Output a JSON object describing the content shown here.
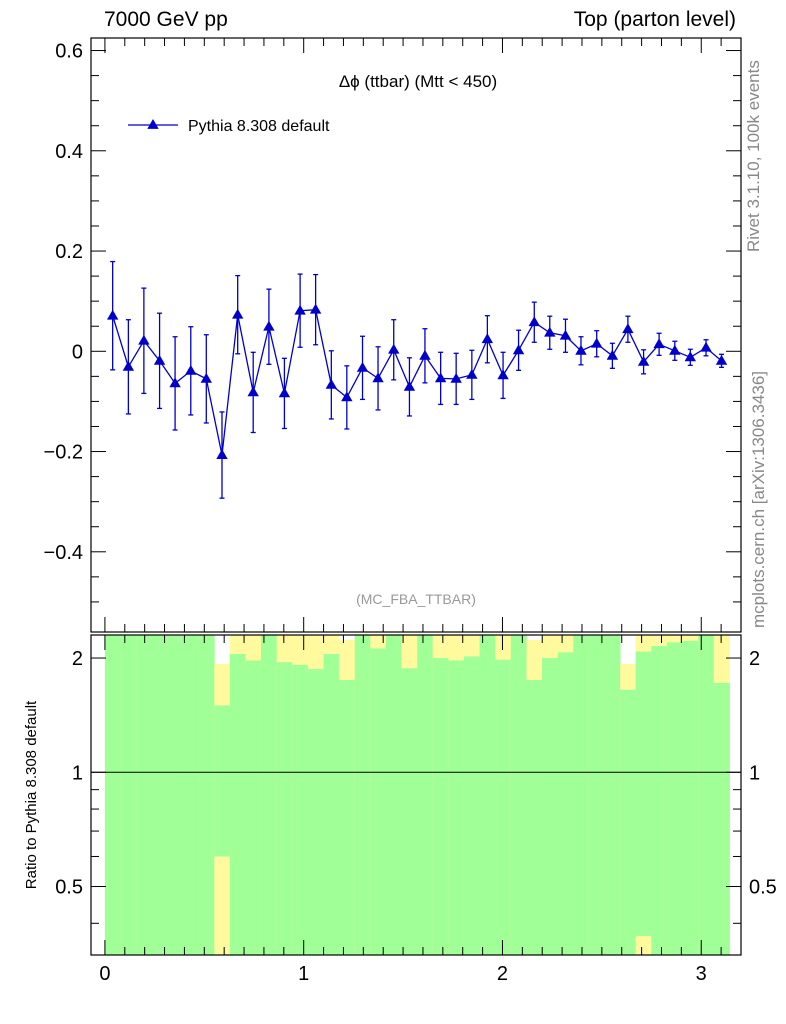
{
  "header": {
    "left": "7000 GeV pp",
    "right": "Top (parton level)"
  },
  "side_labels": {
    "rivet": "Rivet 3.1.10,  100k events",
    "mcplots": "mcplots.cern.ch [arXiv:1306.3436]"
  },
  "colors": {
    "series": "#0000cc",
    "band_inner": "#a0ff97",
    "band_outer": "#fffa9e",
    "axis": "#000000",
    "watermark": "#999999"
  },
  "chart_data": [
    {
      "type": "line",
      "title": "Δϕ (ttbar) (Mtt < 450)",
      "watermark": "(MC_FBA_TTBAR)",
      "xlim": [
        -0.07,
        3.2
      ],
      "ylim": [
        -0.56,
        0.625
      ],
      "y_ticks": [
        -0.4,
        -0.2,
        0,
        0.2,
        0.4,
        0.6
      ],
      "y_tick_labels": [
        "−0.4",
        "−0.2",
        "0",
        "0.2",
        "0.4",
        "0.6"
      ],
      "legend_position": "top-left",
      "series": [
        {
          "name": "Pythia 8.308 default",
          "marker": "triangle-up",
          "x": [
            0.039,
            0.118,
            0.196,
            0.275,
            0.353,
            0.432,
            0.51,
            0.589,
            0.668,
            0.746,
            0.825,
            0.903,
            0.982,
            1.06,
            1.139,
            1.217,
            1.296,
            1.374,
            1.453,
            1.532,
            1.61,
            1.689,
            1.767,
            1.846,
            1.924,
            2.003,
            2.081,
            2.16,
            2.238,
            2.317,
            2.395,
            2.474,
            2.553,
            2.631,
            2.71,
            2.788,
            2.867,
            2.945,
            3.024,
            3.102
          ],
          "y": [
            0.071,
            -0.031,
            0.021,
            -0.019,
            -0.064,
            -0.039,
            -0.055,
            -0.207,
            0.073,
            -0.082,
            0.049,
            -0.084,
            0.081,
            0.083,
            -0.067,
            -0.092,
            -0.033,
            -0.054,
            0.003,
            -0.071,
            -0.009,
            -0.054,
            -0.055,
            -0.047,
            0.024,
            -0.048,
            0.002,
            0.058,
            0.037,
            0.031,
            0.001,
            0.015,
            -0.009,
            0.044,
            -0.021,
            0.014,
            0.001,
            -0.012,
            0.007,
            -0.019
          ],
          "yerr": [
            0.108,
            0.094,
            0.105,
            0.095,
            0.093,
            0.088,
            0.088,
            0.086,
            0.078,
            0.08,
            0.075,
            0.07,
            0.073,
            0.07,
            0.068,
            0.063,
            0.063,
            0.063,
            0.06,
            0.058,
            0.054,
            0.052,
            0.051,
            0.049,
            0.047,
            0.046,
            0.04,
            0.04,
            0.033,
            0.033,
            0.028,
            0.026,
            0.025,
            0.026,
            0.024,
            0.022,
            0.019,
            0.016,
            0.016,
            0.013
          ]
        }
      ]
    },
    {
      "type": "area",
      "ylabel": "Ratio to Pythia 8.308 default",
      "xlim": [
        -0.07,
        3.2
      ],
      "ylim": [
        0.33,
        2.3
      ],
      "y_scale": "log",
      "reference_line": 1,
      "x_ticks": [
        0,
        1,
        2,
        3
      ],
      "x_tick_labels": [
        "0",
        "1",
        "2",
        "3"
      ],
      "y_ticks": [
        0.5,
        1,
        2
      ],
      "y_tick_labels": [
        "0.5",
        "1",
        "2"
      ],
      "bin_edges": [
        0.0,
        0.079,
        0.157,
        0.236,
        0.314,
        0.393,
        0.471,
        0.55,
        0.628,
        0.707,
        0.785,
        0.864,
        0.942,
        1.021,
        1.1,
        1.178,
        1.257,
        1.335,
        1.414,
        1.492,
        1.571,
        1.649,
        1.728,
        1.806,
        1.885,
        1.963,
        2.042,
        2.121,
        2.199,
        2.278,
        2.356,
        2.435,
        2.513,
        2.592,
        2.67,
        2.749,
        2.827,
        2.906,
        2.985,
        3.063,
        3.142
      ],
      "band_inner_lower": [
        0.33,
        0.33,
        0.33,
        0.33,
        0.33,
        0.33,
        0.33,
        0.6,
        0.33,
        0.33,
        0.33,
        0.33,
        0.33,
        0.33,
        0.33,
        0.33,
        0.33,
        0.33,
        0.33,
        0.33,
        0.33,
        0.33,
        0.33,
        0.33,
        0.33,
        0.33,
        0.33,
        0.33,
        0.33,
        0.33,
        0.33,
        0.33,
        0.33,
        0.33,
        0.37,
        0.33,
        0.33,
        0.33,
        0.33,
        0.33
      ],
      "band_inner_upper": [
        2.3,
        2.3,
        2.3,
        2.3,
        2.3,
        2.3,
        2.3,
        1.5,
        2.05,
        1.97,
        2.3,
        1.95,
        1.92,
        1.87,
        2.05,
        1.75,
        2.3,
        2.12,
        2.3,
        1.88,
        2.3,
        2.0,
        1.97,
        2.02,
        2.3,
        1.98,
        2.3,
        1.75,
        2.0,
        2.07,
        2.3,
        2.3,
        2.3,
        1.65,
        2.08,
        2.15,
        2.2,
        2.22,
        2.3,
        1.72
      ],
      "band_outer_lower": [
        0.33,
        0.33,
        0.33,
        0.33,
        0.33,
        0.33,
        0.33,
        0.33,
        0.33,
        0.33,
        0.33,
        0.33,
        0.33,
        0.33,
        0.33,
        0.33,
        0.33,
        0.33,
        0.33,
        0.33,
        0.33,
        0.33,
        0.33,
        0.33,
        0.33,
        0.33,
        0.33,
        0.33,
        0.33,
        0.33,
        0.33,
        0.33,
        0.33,
        0.33,
        0.33,
        0.33,
        0.33,
        0.33,
        0.33,
        0.33
      ],
      "band_outer_upper": [
        2.3,
        2.3,
        2.3,
        2.3,
        2.3,
        2.3,
        2.3,
        1.93,
        2.3,
        2.3,
        2.3,
        2.3,
        2.3,
        2.3,
        2.3,
        2.23,
        2.3,
        2.3,
        2.3,
        2.3,
        2.3,
        2.3,
        2.3,
        2.3,
        2.3,
        2.3,
        2.3,
        2.23,
        2.3,
        2.3,
        2.3,
        2.3,
        2.3,
        1.93,
        2.3,
        2.3,
        2.3,
        2.3,
        2.3,
        2.3
      ]
    }
  ]
}
